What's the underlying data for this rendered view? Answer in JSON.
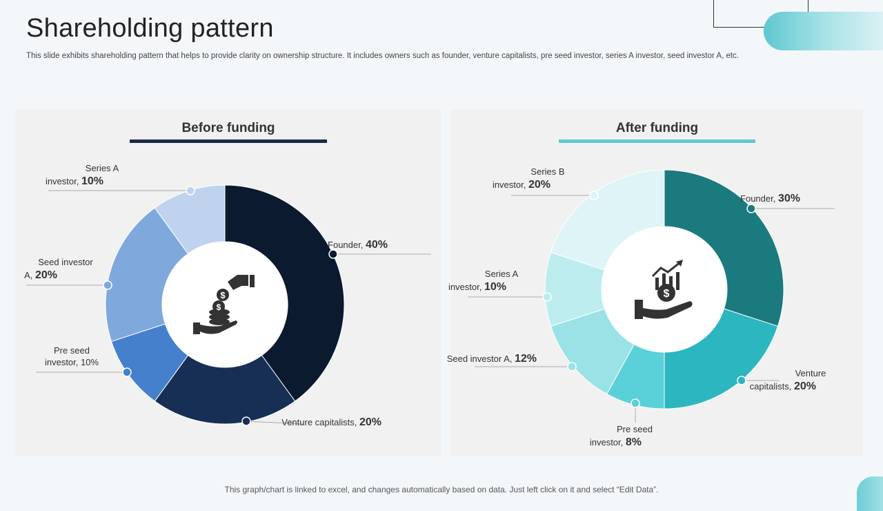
{
  "header": {
    "title": "Shareholding pattern",
    "subtitle": "This slide exhibits shareholding pattern that helps to provide clarity on ownership structure. It includes owners such as founder, venture capitalists, pre seed investor, series A investor, seed investor A, etc."
  },
  "footer": {
    "note": "This graph/chart is linked to excel,  and changes automatically based on data. Just left click on it and select “Edit Data”."
  },
  "chart_data": [
    {
      "type": "pie",
      "title": "Before funding",
      "center_icon": "hand-coins-dollar-icon",
      "accent_color": "#1b2a47",
      "slices": [
        {
          "name": "Founder",
          "value": 40,
          "value_label": "40%",
          "color": "#0b1a2e"
        },
        {
          "name": "Venture capitalists",
          "value": 20,
          "value_label": "20%",
          "color": "#172f55"
        },
        {
          "name": "Pre seed investor",
          "value": 10,
          "value_label": "10%",
          "color": "#4480cc"
        },
        {
          "name": "Seed investor A",
          "value": 20,
          "value_label": "20%",
          "color": "#7fa8dc"
        },
        {
          "name": "Series A investor",
          "value": 10,
          "value_label": "10%",
          "color": "#c0d3ee"
        }
      ]
    },
    {
      "type": "pie",
      "title": "After funding",
      "center_icon": "hand-growth-chart-icon",
      "accent_color": "#5ec8d4",
      "slices": [
        {
          "name": "Founder",
          "value": 30,
          "value_label": "30%",
          "color": "#1a7a7e"
        },
        {
          "name": "Venture capitalists",
          "value": 20,
          "value_label": "20%",
          "color": "#2cb6c0"
        },
        {
          "name": "Pre seed investor",
          "value": 8,
          "value_label": "8%",
          "color": "#5ad0d8"
        },
        {
          "name": "Seed investor A",
          "value": 12,
          "value_label": "12%",
          "color": "#9ae2e6"
        },
        {
          "name": "Series A investor",
          "value": 10,
          "value_label": "10%",
          "color": "#bdecef"
        },
        {
          "name": "Series B investor",
          "value": 20,
          "value_label": "20%",
          "color": "#dff4f6"
        }
      ]
    }
  ]
}
